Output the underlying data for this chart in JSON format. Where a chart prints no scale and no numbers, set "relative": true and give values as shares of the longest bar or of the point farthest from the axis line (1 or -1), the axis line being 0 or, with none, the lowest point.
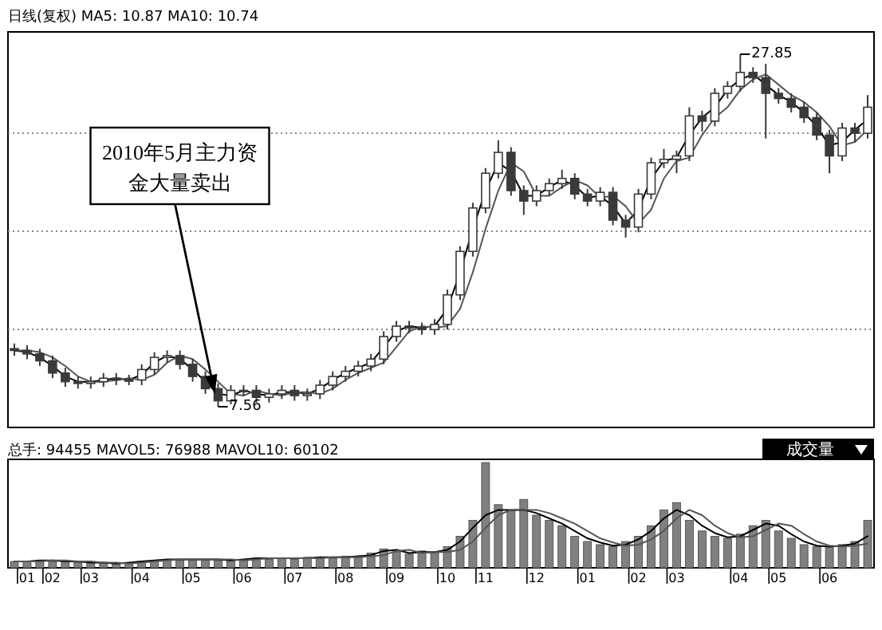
{
  "chart_data": [
    {
      "type": "candlestick",
      "title": "日线(复权) MA5: 10.87 MA10: 10.74",
      "color": "#3a3a3a",
      "categories": [
        null,
        null,
        null,
        null,
        null,
        null,
        null,
        null,
        null,
        null,
        null,
        null,
        null,
        null,
        null,
        null,
        null,
        null,
        null,
        null,
        null,
        null,
        null,
        null,
        null,
        null,
        null,
        null,
        null,
        null,
        null,
        null,
        null,
        null,
        null,
        null,
        null,
        null,
        null,
        null,
        null,
        null,
        null,
        null,
        null,
        null,
        null,
        null,
        null,
        null,
        null,
        null,
        null,
        null,
        null,
        null,
        null,
        null,
        null,
        null,
        null,
        null,
        null,
        null,
        null,
        null,
        null,
        null
      ],
      "ohlc": [
        [
          10.9,
          11.2,
          10.5,
          10.8
        ],
        [
          10.8,
          11.1,
          10.3,
          10.6
        ],
        [
          10.6,
          10.9,
          9.9,
          10.2
        ],
        [
          10.2,
          10.5,
          9.2,
          9.5
        ],
        [
          9.5,
          9.8,
          8.7,
          9.0
        ],
        [
          9.0,
          9.3,
          8.6,
          8.9
        ],
        [
          8.9,
          9.3,
          8.6,
          9.0
        ],
        [
          9.0,
          9.5,
          8.7,
          9.2
        ],
        [
          9.2,
          9.5,
          8.8,
          9.1
        ],
        [
          9.1,
          9.4,
          8.8,
          9.1
        ],
        [
          9.1,
          10.0,
          8.8,
          9.7
        ],
        [
          9.7,
          10.7,
          9.4,
          10.4
        ],
        [
          10.4,
          10.8,
          10.1,
          10.5
        ],
        [
          10.5,
          10.8,
          9.7,
          10.0
        ],
        [
          10.0,
          10.3,
          9.0,
          9.3
        ],
        [
          9.3,
          9.6,
          8.3,
          8.6
        ],
        [
          8.6,
          8.9,
          7.56,
          7.9
        ],
        [
          7.9,
          8.8,
          7.7,
          8.5
        ],
        [
          8.5,
          8.8,
          8.2,
          8.5
        ],
        [
          8.5,
          8.8,
          7.8,
          8.1
        ],
        [
          8.1,
          8.6,
          7.8,
          8.3
        ],
        [
          8.3,
          8.8,
          8.0,
          8.5
        ],
        [
          8.5,
          8.8,
          7.9,
          8.2
        ],
        [
          8.2,
          8.6,
          7.9,
          8.3
        ],
        [
          8.3,
          9.1,
          8.0,
          8.8
        ],
        [
          8.8,
          9.6,
          8.5,
          9.3
        ],
        [
          9.3,
          9.9,
          9.0,
          9.6
        ],
        [
          9.6,
          10.2,
          9.3,
          9.9
        ],
        [
          9.9,
          10.6,
          9.6,
          10.3
        ],
        [
          10.3,
          11.9,
          10.0,
          11.6
        ],
        [
          11.6,
          12.5,
          11.3,
          12.2
        ],
        [
          12.2,
          12.5,
          11.8,
          12.1
        ],
        [
          12.1,
          12.4,
          11.7,
          12.0
        ],
        [
          12.0,
          12.6,
          11.7,
          12.3
        ],
        [
          12.3,
          14.3,
          12.0,
          14.0
        ],
        [
          14.0,
          16.8,
          13.7,
          16.5
        ],
        [
          16.5,
          19.3,
          16.2,
          19.0
        ],
        [
          19.0,
          21.3,
          18.7,
          21.0
        ],
        [
          21.0,
          22.9,
          20.7,
          22.2
        ],
        [
          22.2,
          22.5,
          19.7,
          20.0
        ],
        [
          20.0,
          20.3,
          18.6,
          19.4
        ],
        [
          19.4,
          20.3,
          19.1,
          20.0
        ],
        [
          20.0,
          20.7,
          19.7,
          20.4
        ],
        [
          20.4,
          21.2,
          20.1,
          20.7
        ],
        [
          20.7,
          21.0,
          19.5,
          19.8
        ],
        [
          19.8,
          20.1,
          19.1,
          19.4
        ],
        [
          19.4,
          20.2,
          19.1,
          19.9
        ],
        [
          19.9,
          20.2,
          18.0,
          18.3
        ],
        [
          18.3,
          18.6,
          17.3,
          17.9
        ],
        [
          17.9,
          20.1,
          17.6,
          19.8
        ],
        [
          19.8,
          21.9,
          19.5,
          21.6
        ],
        [
          21.6,
          22.4,
          21.3,
          21.8
        ],
        [
          21.8,
          22.3,
          21.0,
          22.0
        ],
        [
          22.0,
          24.8,
          21.7,
          24.3
        ],
        [
          24.3,
          24.6,
          23.4,
          24.0
        ],
        [
          24.0,
          25.9,
          23.7,
          25.6
        ],
        [
          25.6,
          26.3,
          25.3,
          26.0
        ],
        [
          26.0,
          27.85,
          25.7,
          26.8
        ],
        [
          26.8,
          27.1,
          26.2,
          26.5
        ],
        [
          26.5,
          27.3,
          23.0,
          25.6
        ],
        [
          25.6,
          25.9,
          25.0,
          25.3
        ],
        [
          25.3,
          25.6,
          24.5,
          24.8
        ],
        [
          24.8,
          25.1,
          23.9,
          24.2
        ],
        [
          24.2,
          24.5,
          22.9,
          23.2
        ],
        [
          23.2,
          23.5,
          21.0,
          22.0
        ],
        [
          22.0,
          23.9,
          21.7,
          23.6
        ],
        [
          23.6,
          23.9,
          22.8,
          23.3
        ],
        [
          23.3,
          25.5,
          23.0,
          24.8
        ]
      ],
      "series": [
        {
          "type": "line",
          "color": "#000000",
          "values": [
            10.8,
            10.7,
            10.4,
            9.9,
            9.3,
            9.0,
            9.0,
            9.1,
            9.2,
            9.1,
            9.4,
            10.1,
            10.5,
            10.3,
            9.7,
            9.0,
            8.3,
            8.2,
            8.5,
            8.3,
            8.2,
            8.4,
            8.4,
            8.3,
            8.6,
            9.1,
            9.5,
            9.8,
            10.1,
            11.0,
            11.9,
            12.2,
            12.1,
            12.2,
            13.2,
            15.3,
            17.8,
            20.0,
            21.6,
            21.1,
            19.7,
            19.7,
            20.2,
            20.6,
            20.3,
            19.6,
            19.7,
            19.1,
            18.1,
            18.9,
            20.7,
            21.7,
            21.9,
            23.2,
            24.2,
            24.8,
            25.8,
            26.4,
            26.7,
            26.1,
            25.5,
            25.1,
            24.5,
            23.7,
            22.6,
            22.8,
            23.5,
            24.1
          ]
        },
        {
          "type": "line",
          "color": "#555555",
          "values": [
            10.8,
            10.8,
            10.7,
            10.4,
            9.9,
            9.3,
            9.0,
            9.0,
            9.1,
            9.2,
            9.1,
            9.4,
            10.1,
            10.5,
            10.3,
            9.7,
            9.0,
            8.3,
            8.2,
            8.5,
            8.3,
            8.2,
            8.4,
            8.4,
            8.3,
            8.6,
            9.1,
            9.5,
            9.8,
            10.1,
            11.0,
            11.9,
            12.2,
            12.1,
            12.2,
            13.2,
            15.3,
            17.8,
            20.0,
            21.6,
            21.1,
            19.7,
            19.7,
            20.2,
            20.6,
            20.3,
            19.6,
            19.7,
            19.1,
            18.1,
            18.9,
            20.7,
            21.7,
            21.9,
            23.2,
            24.2,
            24.8,
            25.8,
            26.4,
            26.7,
            26.1,
            25.5,
            25.1,
            24.5,
            23.7,
            22.6,
            22.8,
            23.5
          ]
        }
      ],
      "grid": "y",
      "annotations": [
        "2010年5月主力资金大量卖出",
        "7.56",
        "27.85"
      ]
    },
    {
      "type": "bar",
      "title": "总手: 94455 MAVOL5: 76988 MAVOL10: 60102",
      "relative": true,
      "categories": [
        null,
        "01",
        null,
        "02",
        null,
        null,
        "03",
        null,
        null,
        null,
        "04",
        null,
        null,
        null,
        "05",
        null,
        null,
        null,
        "06",
        null,
        null,
        null,
        "07",
        null,
        null,
        null,
        "08",
        null,
        null,
        null,
        "09",
        null,
        null,
        null,
        "10",
        null,
        null,
        "11",
        null,
        null,
        null,
        "12",
        null,
        null,
        null,
        "01",
        null,
        null,
        null,
        "02",
        null,
        null,
        "03",
        null,
        null,
        null,
        null,
        "04",
        null,
        null,
        "05",
        null,
        null,
        null,
        "06",
        null,
        null,
        null
      ],
      "series": [
        {
          "color": "#808080",
          "values": [
            0.06,
            0.06,
            0.07,
            0.06,
            0.06,
            0.05,
            0.05,
            0.04,
            0.04,
            0.05,
            0.06,
            0.07,
            0.08,
            0.07,
            0.08,
            0.08,
            0.07,
            0.07,
            0.08,
            0.09,
            0.08,
            0.09,
            0.08,
            0.1,
            0.1,
            0.09,
            0.11,
            0.1,
            0.14,
            0.18,
            0.15,
            0.13,
            0.16,
            0.14,
            0.2,
            0.3,
            0.45,
            1.0,
            0.6,
            0.55,
            0.65,
            0.5,
            0.45,
            0.4,
            0.3,
            0.25,
            0.22,
            0.2,
            0.25,
            0.3,
            0.4,
            0.55,
            0.62,
            0.45,
            0.35,
            0.3,
            0.28,
            0.32,
            0.4,
            0.45,
            0.35,
            0.28,
            0.22,
            0.2,
            0.2,
            0.22,
            0.25,
            0.45
          ]
        },
        {
          "type": "line",
          "color": "#000000",
          "values": [
            0.06,
            0.06,
            0.07,
            0.07,
            0.06,
            0.06,
            0.05,
            0.05,
            0.04,
            0.05,
            0.06,
            0.07,
            0.08,
            0.08,
            0.08,
            0.08,
            0.08,
            0.07,
            0.08,
            0.09,
            0.09,
            0.09,
            0.09,
            0.09,
            0.1,
            0.1,
            0.1,
            0.11,
            0.12,
            0.16,
            0.17,
            0.14,
            0.15,
            0.15,
            0.17,
            0.25,
            0.38,
            0.5,
            0.55,
            0.55,
            0.55,
            0.52,
            0.47,
            0.42,
            0.35,
            0.28,
            0.24,
            0.21,
            0.22,
            0.27,
            0.35,
            0.47,
            0.55,
            0.5,
            0.4,
            0.33,
            0.29,
            0.3,
            0.36,
            0.42,
            0.4,
            0.32,
            0.25,
            0.21,
            0.2,
            0.21,
            0.23,
            0.3
          ]
        },
        {
          "type": "line",
          "color": "#555555",
          "values": [
            0.06,
            0.06,
            0.06,
            0.07,
            0.07,
            0.06,
            0.06,
            0.05,
            0.05,
            0.04,
            0.05,
            0.06,
            0.07,
            0.08,
            0.08,
            0.08,
            0.08,
            0.08,
            0.07,
            0.08,
            0.09,
            0.09,
            0.09,
            0.09,
            0.09,
            0.1,
            0.1,
            0.1,
            0.11,
            0.12,
            0.16,
            0.17,
            0.14,
            0.15,
            0.15,
            0.17,
            0.25,
            0.38,
            0.5,
            0.55,
            0.55,
            0.55,
            0.52,
            0.47,
            0.42,
            0.35,
            0.28,
            0.24,
            0.21,
            0.22,
            0.27,
            0.35,
            0.47,
            0.55,
            0.5,
            0.4,
            0.33,
            0.29,
            0.3,
            0.36,
            0.42,
            0.4,
            0.32,
            0.25,
            0.21,
            0.2,
            0.21,
            0.23
          ]
        }
      ],
      "annotations": [
        "成交量"
      ]
    }
  ]
}
